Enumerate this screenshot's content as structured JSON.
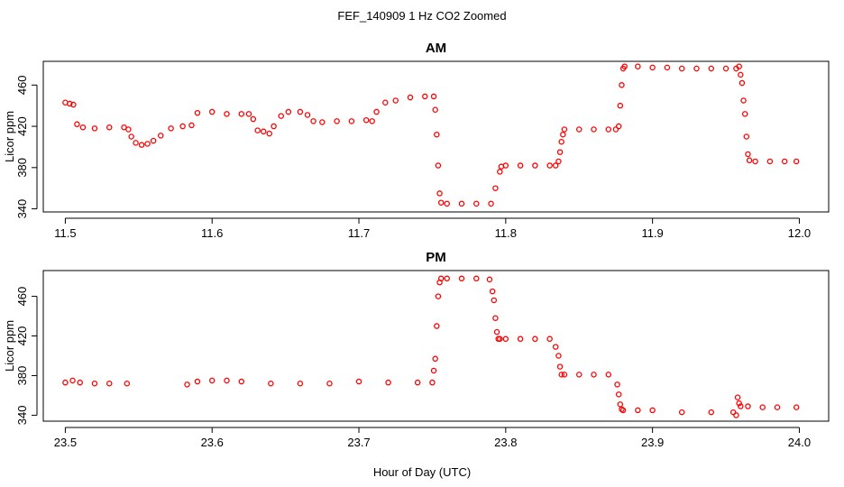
{
  "figure": {
    "title": "FEF_140909  1 Hz CO2 Zoomed",
    "xlabel": "Hour of Day (UTC)"
  },
  "colors": {
    "points": "#ff0000",
    "axis": "#000000"
  },
  "chart_data": [
    {
      "type": "scatter",
      "title": "AM",
      "ylabel": "Licor ppm",
      "xlim": [
        11.485,
        12.02
      ],
      "ylim": [
        337,
        483
      ],
      "xticks": [
        11.5,
        11.6,
        11.7,
        11.8,
        11.9,
        12.0
      ],
      "xtick_labels": [
        "11.5",
        "11.6",
        "11.7",
        "11.8",
        "11.9",
        "12.0"
      ],
      "yticks": [
        340,
        380,
        420,
        460
      ],
      "ytick_labels": [
        "340",
        "380",
        "420",
        "460"
      ],
      "grid": false,
      "series": [
        {
          "marker": "open-circle",
          "x": [
            11.5,
            11.503,
            11.5055,
            11.508,
            11.512,
            11.52,
            11.53,
            11.54,
            11.543,
            11.545,
            11.548,
            11.552,
            11.556,
            11.56,
            11.565,
            11.572,
            11.58,
            11.586,
            11.59,
            11.6,
            11.61,
            11.62,
            11.625,
            11.628,
            11.631,
            11.635,
            11.639,
            11.642,
            11.647,
            11.652,
            11.66,
            11.665,
            11.669,
            11.675,
            11.685,
            11.695,
            11.705,
            11.709,
            11.712,
            11.718,
            11.725,
            11.735,
            11.745,
            11.751,
            11.752,
            11.753,
            11.754,
            11.755,
            11.756,
            11.76,
            11.77,
            11.78,
            11.79,
            11.793,
            11.796,
            11.797,
            11.8,
            11.81,
            11.82,
            11.83,
            11.834,
            11.836,
            11.837,
            11.838,
            11.839,
            11.84,
            11.85,
            11.86,
            11.87,
            11.875,
            11.877,
            11.878,
            11.879,
            11.88,
            11.881,
            11.89,
            11.9,
            11.91,
            11.92,
            11.93,
            11.94,
            11.95,
            11.957,
            11.959,
            11.96,
            11.961,
            11.962,
            11.963,
            11.964,
            11.965,
            11.966,
            11.97,
            11.98,
            11.99,
            11.998
          ],
          "y": [
            443,
            442,
            441,
            422,
            419,
            418,
            419,
            419,
            417,
            410,
            404,
            402,
            403,
            406,
            411,
            418,
            420,
            421,
            433,
            434,
            432,
            432,
            432,
            427,
            416,
            415,
            413,
            420,
            430,
            434,
            434,
            431,
            425,
            424,
            425,
            425,
            426,
            425,
            434,
            443,
            445,
            448,
            449,
            449,
            436,
            412,
            382,
            355,
            346,
            345,
            345,
            345,
            345,
            360,
            376,
            381,
            382,
            382,
            382,
            382,
            382,
            386,
            395,
            405,
            412,
            417,
            417,
            417,
            417,
            417,
            420,
            440,
            460,
            476,
            478,
            478,
            477,
            477,
            476,
            476,
            476,
            476,
            476,
            478,
            470,
            462,
            445,
            432,
            410,
            393,
            387,
            386,
            386,
            386,
            386
          ]
        }
      ]
    },
    {
      "type": "scatter",
      "title": "PM",
      "ylabel": "Licor ppm",
      "xlim": [
        23.485,
        24.02
      ],
      "ylim": [
        334,
        486
      ],
      "xticks": [
        23.5,
        23.6,
        23.7,
        23.8,
        23.9,
        24.0
      ],
      "xtick_labels": [
        "23.5",
        "23.6",
        "23.7",
        "23.8",
        "23.9",
        "24.0"
      ],
      "yticks": [
        340,
        380,
        420,
        460
      ],
      "ytick_labels": [
        "340",
        "380",
        "420",
        "460"
      ],
      "grid": false,
      "series": [
        {
          "marker": "open-circle",
          "x": [
            23.5,
            23.505,
            23.51,
            23.52,
            23.53,
            23.542,
            23.583,
            23.59,
            23.6,
            23.61,
            23.62,
            23.64,
            23.66,
            23.68,
            23.7,
            23.72,
            23.74,
            23.75,
            23.751,
            23.752,
            23.753,
            23.754,
            23.755,
            23.756,
            23.76,
            23.77,
            23.78,
            23.789,
            23.791,
            23.792,
            23.793,
            23.794,
            23.795,
            23.796,
            23.8,
            23.81,
            23.82,
            23.83,
            23.834,
            23.836,
            23.837,
            23.838,
            23.84,
            23.85,
            23.86,
            23.87,
            23.876,
            23.877,
            23.878,
            23.879,
            23.88,
            23.89,
            23.9,
            23.92,
            23.94,
            23.955,
            23.957,
            23.958,
            23.959,
            23.96,
            23.965,
            23.975,
            23.985,
            23.998
          ],
          "y": [
            373,
            375,
            373,
            372,
            372,
            372,
            371,
            374,
            375,
            375,
            374,
            372,
            372,
            372,
            374,
            373,
            373,
            373,
            385,
            397,
            430,
            460,
            474,
            478,
            478,
            478,
            478,
            477,
            465,
            456,
            438,
            424,
            417,
            417,
            417,
            417,
            417,
            417,
            409,
            400,
            389,
            381,
            381,
            381,
            381,
            381,
            371,
            361,
            351,
            346,
            345,
            345,
            345,
            343,
            343,
            343,
            340,
            358,
            352,
            349,
            349,
            348,
            348,
            348
          ]
        }
      ]
    }
  ]
}
